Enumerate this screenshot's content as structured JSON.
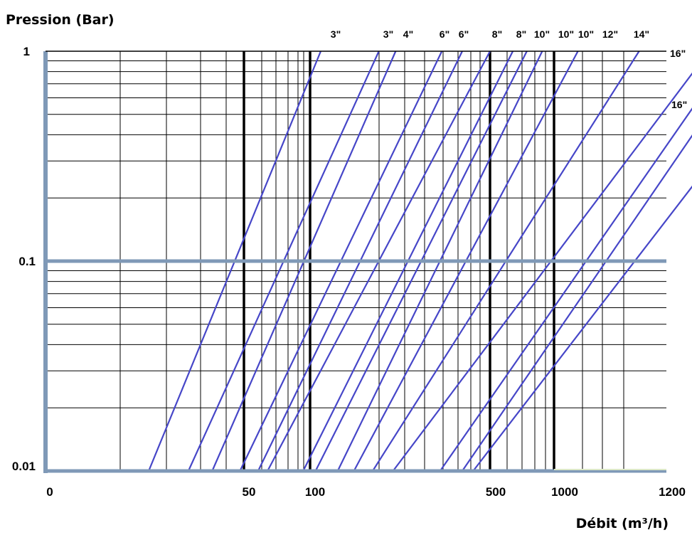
{
  "chart_data": {
    "type": "line",
    "ylabel": "Pression (Bar)",
    "xlabel": "Débit (m³/h)",
    "y_scale": "log",
    "ylim": [
      0.01,
      1
    ],
    "y_ticks": [
      "1",
      "0.1",
      "0.01"
    ],
    "x_ticks": [
      {
        "label": "0",
        "value": 0
      },
      {
        "label": "50",
        "value": 50
      },
      {
        "label": "100",
        "value": 100
      },
      {
        "label": "500",
        "value": 500
      },
      {
        "label": "1000",
        "value": 1000
      },
      {
        "label": "1200",
        "value": 1200
      }
    ],
    "grid": true,
    "line_color": "#4646c8",
    "axis_color": "#7f99b7",
    "series": [
      {
        "name": "3\"",
        "x": [
          26,
          110
        ],
        "y": [
          0.01,
          1
        ]
      },
      {
        "name": "3\"",
        "x": [
          36,
          185
        ],
        "y": [
          0.01,
          1
        ]
      },
      {
        "name": "4\"",
        "x": [
          42,
          215
        ],
        "y": [
          0.01,
          1
        ]
      },
      {
        "name": "6\"",
        "x": [
          49,
          325
        ],
        "y": [
          0.01,
          1
        ]
      },
      {
        "name": "6\"",
        "x": [
          58,
          390
        ],
        "y": [
          0.01,
          1
        ]
      },
      {
        "name": "8\"",
        "x": [
          64,
          500
        ],
        "y": [
          0.01,
          1
        ]
      },
      {
        "name": "8\"",
        "x": [
          93,
          640
        ],
        "y": [
          0.01,
          1
        ]
      },
      {
        "name": "10\"",
        "x": [
          105,
          745
        ],
        "y": [
          0.01,
          1
        ]
      },
      {
        "name": "10\"",
        "x": [
          128,
          880
        ],
        "y": [
          0.01,
          1
        ]
      },
      {
        "name": "10\"",
        "x": [
          148,
          1040
        ],
        "y": [
          0.01,
          1
        ]
      },
      {
        "name": "12\"",
        "x": [
          175,
          1150
        ],
        "y": [
          0.01,
          1
        ]
      },
      {
        "name": "14\"",
        "x": [
          210,
          1290
        ],
        "y": [
          0.01,
          1
        ]
      },
      {
        "name": "16\"",
        "x": [
          320,
          1340
        ],
        "y": [
          0.01,
          1
        ]
      },
      {
        "name": "",
        "x": [
          390,
          1380
        ],
        "y": [
          0.01,
          1
        ]
      },
      {
        "name": "16\"",
        "x": [
          430,
          1390
        ],
        "y": [
          0.01,
          0.55
        ]
      }
    ]
  }
}
